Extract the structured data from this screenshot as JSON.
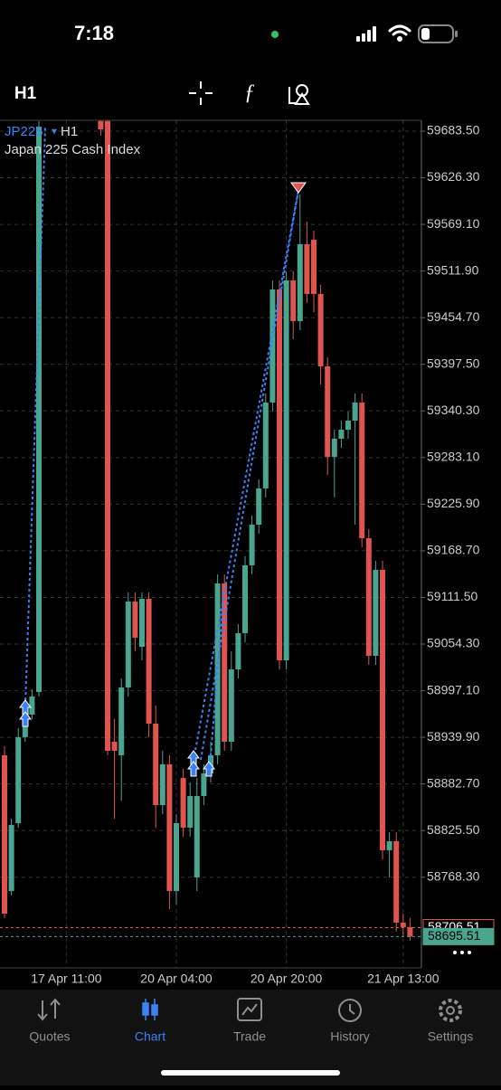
{
  "status_bar": {
    "time": "7:18"
  },
  "toolbar": {
    "timeframe": "H1"
  },
  "chart_data": {
    "type": "candlestick",
    "symbol": "JP225",
    "timeframe": "H1",
    "title": "Japan 225 Cash Index",
    "categories": [
      null,
      null,
      null,
      null,
      null,
      null,
      null,
      null,
      null,
      "17 Apr 11:00",
      null,
      null,
      null,
      null,
      null,
      null,
      null,
      null,
      null,
      null,
      null,
      null,
      null,
      null,
      null,
      "20 Apr 04:00",
      null,
      null,
      null,
      null,
      null,
      null,
      null,
      null,
      null,
      null,
      null,
      null,
      null,
      null,
      null,
      "20 Apr 20:00",
      null,
      null,
      null,
      null,
      null,
      null,
      null,
      null,
      null,
      null,
      null,
      null,
      null,
      null,
      null,
      null,
      "21 Apr 13:00",
      null
    ],
    "open": [
      58917.9,
      58751.4,
      58834.7,
      58940.1,
      58967.8,
      58995.5,
      null,
      null,
      null,
      null,
      null,
      null,
      null,
      null,
      59696.0,
      59696.0,
      58934.5,
      58917.9,
      59001.1,
      59106.5,
      59051.0,
      59109.8,
      58956.7,
      58856.8,
      58906.8,
      58751.4,
      58890.1,
      58829.1,
      58768.1,
      58867.9,
      58895.7,
      58917.9,
      59128.7,
      58934.5,
      59023.3,
      59067.7,
      59150.9,
      59200.8,
      59245.2,
      59350.6,
      59489.3,
      59034.4,
      59500.4,
      59450.5,
      59544.8,
      59550.3,
      59483.8,
      59395.0,
      59284.0,
      59306.2,
      59317.3,
      59328.4,
      59350.6,
      59184.2,
      59039.9,
      59145.3,
      58801.4,
      58812.5,
      58712.6,
      58707.1
    ],
    "high": [
      58929.0,
      58840.2,
      58951.2,
      58978.9,
      58998.8,
      59696.0,
      null,
      null,
      null,
      null,
      null,
      null,
      null,
      null,
      59696.0,
      59696.0,
      58962.3,
      59012.2,
      59117.6,
      59117.6,
      59117.6,
      59117.6,
      58978.9,
      58923.4,
      58917.9,
      58845.7,
      58901.2,
      58884.6,
      58890.1,
      58906.8,
      58934.5,
      59139.8,
      59139.8,
      59045.5,
      59078.8,
      59162.0,
      59211.9,
      59256.3,
      59361.7,
      59500.4,
      59500.4,
      59511.5,
      59511.5,
      59605.8,
      59572.5,
      59561.4,
      59494.9,
      59406.1,
      59317.3,
      59328.4,
      59339.5,
      59361.7,
      59361.7,
      59195.3,
      59156.4,
      59156.4,
      58823.6,
      58823.6,
      58723.7,
      58718.2
    ],
    "low": [
      58718.2,
      58745.9,
      58829.1,
      58934.5,
      58962.3,
      58990.0,
      null,
      null,
      null,
      null,
      null,
      null,
      null,
      null,
      59678.0,
      58917.9,
      58840.2,
      58862.3,
      58990.0,
      59045.5,
      59034.4,
      58940.1,
      58829.1,
      58845.7,
      58729.2,
      58734.8,
      58818.0,
      58818.0,
      58751.4,
      58856.8,
      58884.6,
      58906.8,
      58923.4,
      58923.4,
      59012.2,
      59056.6,
      59139.8,
      59189.7,
      59234.1,
      59339.5,
      59023.3,
      59023.3,
      59428.3,
      59439.4,
      59472.7,
      59461.6,
      59372.8,
      59261.8,
      59234.1,
      59295.1,
      59306.2,
      59200.8,
      59173.1,
      59028.8,
      59028.8,
      58790.3,
      58768.1,
      58701.5,
      58696.0,
      58690.4
    ],
    "close": [
      58723.7,
      58832.4,
      58940.1,
      58967.8,
      58990.0,
      59689.0,
      null,
      null,
      null,
      null,
      null,
      null,
      null,
      null,
      59685.7,
      58923.4,
      58923.4,
      59001.1,
      59106.5,
      59062.1,
      59109.8,
      58956.7,
      58856.8,
      58906.8,
      58751.4,
      58834.7,
      58829.1,
      58867.9,
      58867.9,
      58895.7,
      58917.9,
      59128.7,
      58934.5,
      59023.3,
      59067.7,
      59150.9,
      59200.8,
      59245.2,
      59350.6,
      59489.3,
      59034.4,
      59500.4,
      59450.5,
      59544.8,
      59483.8,
      59483.8,
      59395.0,
      59284.0,
      59306.2,
      59317.3,
      59328.4,
      59350.6,
      59184.2,
      59039.9,
      59145.3,
      58801.4,
      58812.5,
      58712.6,
      58707.1,
      58695.51
    ],
    "up_color": "#4aa58f",
    "down_color": "#e0534f",
    "ylim": [
      58657.1,
      59696.8
    ],
    "yticks": [
      {
        "value": 59683.5,
        "label": "59683.50"
      },
      {
        "value": 59626.3,
        "label": "59626.30"
      },
      {
        "value": 59569.1,
        "label": "59569.10"
      },
      {
        "value": 59511.9,
        "label": "59511.90"
      },
      {
        "value": 59454.7,
        "label": "59454.70"
      },
      {
        "value": 59397.5,
        "label": "59397.50"
      },
      {
        "value": 59340.3,
        "label": "59340.30"
      },
      {
        "value": 59283.1,
        "label": "59283.10"
      },
      {
        "value": 59225.9,
        "label": "59225.90"
      },
      {
        "value": 59168.7,
        "label": "59168.70"
      },
      {
        "value": 59111.5,
        "label": "59111.50"
      },
      {
        "value": 59054.3,
        "label": "59054.30"
      },
      {
        "value": 58997.1,
        "label": "58997.10"
      },
      {
        "value": 58939.9,
        "label": "58939.90"
      },
      {
        "value": 58882.7,
        "label": "58882.70"
      },
      {
        "value": 58825.5,
        "label": "58825.50"
      },
      {
        "value": 58768.3,
        "label": "58768.30"
      }
    ],
    "grid": true,
    "price_lines": [
      {
        "value": 58706.51,
        "color": "#e0534f"
      },
      {
        "value": 58695.51,
        "color": "#4aa58f"
      }
    ]
  },
  "tab_bar": {
    "tabs": [
      {
        "label": "Quotes"
      },
      {
        "label": "Chart"
      },
      {
        "label": "Trade"
      },
      {
        "label": "History"
      },
      {
        "label": "Settings"
      }
    ],
    "active": 1
  }
}
